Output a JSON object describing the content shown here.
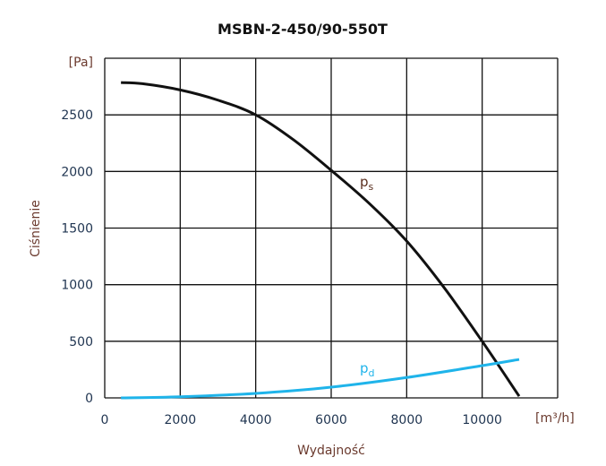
{
  "chart_data": {
    "type": "line",
    "title": "MSBN-2-450/90-550T",
    "xlabel": "Wydajność",
    "ylabel": "Ciśnienie",
    "x_unit": "[m³/h]",
    "y_unit": "[Pa]",
    "xlim": [
      0,
      12000
    ],
    "ylim": [
      0,
      3000
    ],
    "xticks": [
      "0",
      "2000",
      "4000",
      "6000",
      "8000",
      "10000"
    ],
    "yticks": [
      "0",
      "500",
      "1000",
      "1500",
      "2000",
      "2500"
    ],
    "grid": true,
    "series": [
      {
        "name": "ps",
        "label_main": "p",
        "label_sub": "s",
        "color": "#111111",
        "x": [
          430,
          1000,
          2000,
          3000,
          4000,
          5000,
          6000,
          7000,
          8000,
          9000,
          10000,
          10980
        ],
        "y": [
          2785,
          2775,
          2720,
          2630,
          2500,
          2280,
          2010,
          1720,
          1385,
          970,
          500,
          15
        ]
      },
      {
        "name": "pd",
        "label_main": "p",
        "label_sub": "d",
        "color": "#1fb4ea",
        "x": [
          430,
          2000,
          4000,
          6000,
          8000,
          10000,
          10980
        ],
        "y": [
          0,
          10,
          40,
          95,
          180,
          285,
          340
        ]
      }
    ]
  }
}
